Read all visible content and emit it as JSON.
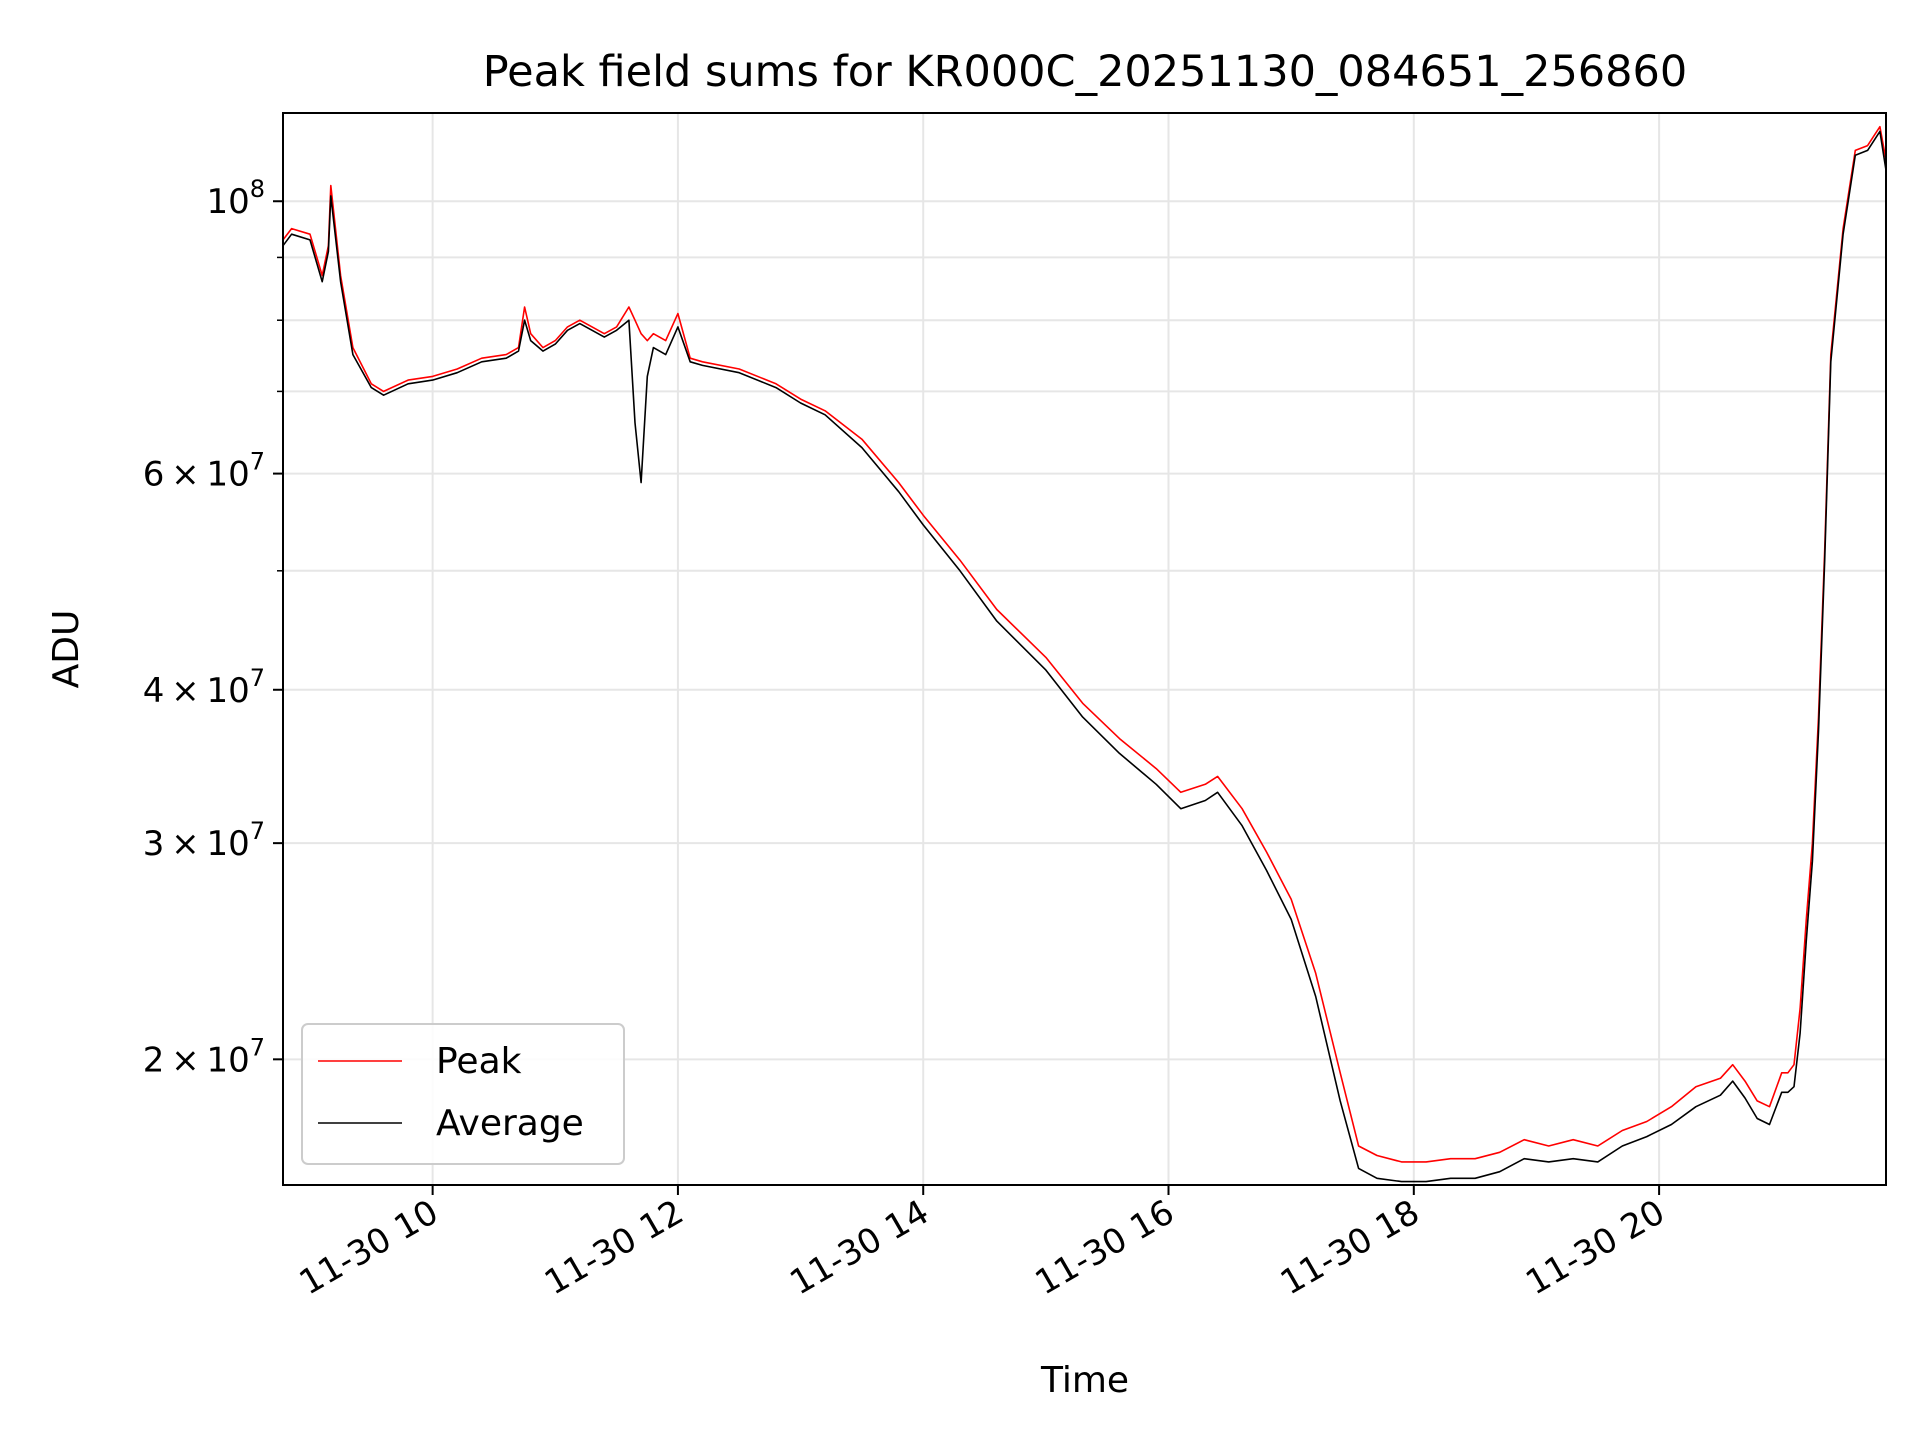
{
  "chart_data": {
    "type": "line",
    "title": "Peak field sums for KR000C_20251130_084651_256860",
    "xlabel": "Time",
    "ylabel": "ADU",
    "x_range_hours": [
      8.78,
      21.85
    ],
    "ylim": [
      15800000,
      118000000
    ],
    "yscale": "log",
    "grid": true,
    "legend_placement": "lower-left",
    "x_ticks": [
      {
        "hour": 10,
        "label": "11-30 10"
      },
      {
        "hour": 12,
        "label": "11-30 12"
      },
      {
        "hour": 14,
        "label": "11-30 14"
      },
      {
        "hour": 16,
        "label": "11-30 16"
      },
      {
        "hour": 18,
        "label": "11-30 18"
      },
      {
        "hour": 20,
        "label": "11-30 20"
      }
    ],
    "y_major_ticks": [
      {
        "value": 20000000,
        "mant": "2",
        "exp": "7"
      },
      {
        "value": 30000000,
        "mant": "3",
        "exp": "7"
      },
      {
        "value": 40000000,
        "mant": "4",
        "exp": "7"
      },
      {
        "value": 60000000,
        "mant": "6",
        "exp": "7"
      },
      {
        "value": 100000000,
        "mant": "",
        "exp": "8"
      }
    ],
    "y_minor_ticks": [
      50000000,
      70000000,
      80000000,
      90000000
    ],
    "series": [
      {
        "name": "Peak",
        "color": "#ff0000",
        "x": [
          8.78,
          8.85,
          9.0,
          9.1,
          9.15,
          9.17,
          9.25,
          9.35,
          9.5,
          9.6,
          9.8,
          10.0,
          10.2,
          10.4,
          10.6,
          10.7,
          10.75,
          10.8,
          10.9,
          11.0,
          11.1,
          11.2,
          11.3,
          11.4,
          11.5,
          11.6,
          11.65,
          11.7,
          11.75,
          11.8,
          11.9,
          12.0,
          12.1,
          12.2,
          12.5,
          12.8,
          13.0,
          13.2,
          13.5,
          13.8,
          14.0,
          14.3,
          14.6,
          15.0,
          15.3,
          15.6,
          15.9,
          16.1,
          16.3,
          16.4,
          16.6,
          16.8,
          17.0,
          17.2,
          17.4,
          17.55,
          17.7,
          17.9,
          18.1,
          18.3,
          18.5,
          18.7,
          18.9,
          19.1,
          19.3,
          19.5,
          19.7,
          19.9,
          20.1,
          20.3,
          20.5,
          20.6,
          20.7,
          20.8,
          20.9,
          21.0,
          21.05,
          21.1,
          21.15,
          21.2,
          21.25,
          21.3,
          21.35,
          21.4,
          21.5,
          21.6,
          21.7,
          21.8,
          21.85
        ],
        "y": [
          93000000,
          95000000,
          94000000,
          87000000,
          92000000,
          103000000,
          87000000,
          76000000,
          71000000,
          70000000,
          71500000,
          72000000,
          73000000,
          74500000,
          75000000,
          76000000,
          82000000,
          78000000,
          76000000,
          77000000,
          79000000,
          80000000,
          79000000,
          78000000,
          79000000,
          82000000,
          80000000,
          78000000,
          77000000,
          78000000,
          77000000,
          81000000,
          74500000,
          74000000,
          73000000,
          71000000,
          69000000,
          67500000,
          64000000,
          59000000,
          55500000,
          51000000,
          46500000,
          42500000,
          39000000,
          36500000,
          34500000,
          33000000,
          33500000,
          34000000,
          32000000,
          29500000,
          27000000,
          23500000,
          19500000,
          17000000,
          16700000,
          16500000,
          16500000,
          16600000,
          16600000,
          16800000,
          17200000,
          17000000,
          17200000,
          17000000,
          17500000,
          17800000,
          18300000,
          19000000,
          19300000,
          19800000,
          19200000,
          18500000,
          18300000,
          19500000,
          19500000,
          19800000,
          22000000,
          26000000,
          30000000,
          38000000,
          52000000,
          75000000,
          95000000,
          110000000,
          111000000,
          115000000,
          108000000
        ]
      },
      {
        "name": "Average",
        "color": "#000000",
        "x": [
          8.78,
          8.85,
          9.0,
          9.1,
          9.15,
          9.17,
          9.25,
          9.35,
          9.5,
          9.6,
          9.8,
          10.0,
          10.2,
          10.4,
          10.6,
          10.7,
          10.75,
          10.8,
          10.9,
          11.0,
          11.1,
          11.2,
          11.3,
          11.4,
          11.5,
          11.6,
          11.65,
          11.7,
          11.75,
          11.8,
          11.9,
          12.0,
          12.1,
          12.2,
          12.5,
          12.8,
          13.0,
          13.2,
          13.5,
          13.8,
          14.0,
          14.3,
          14.6,
          15.0,
          15.3,
          15.6,
          15.9,
          16.1,
          16.3,
          16.4,
          16.6,
          16.8,
          17.0,
          17.2,
          17.4,
          17.55,
          17.7,
          17.9,
          18.1,
          18.3,
          18.5,
          18.7,
          18.9,
          19.1,
          19.3,
          19.5,
          19.7,
          19.9,
          20.1,
          20.3,
          20.5,
          20.6,
          20.7,
          20.8,
          20.9,
          21.0,
          21.05,
          21.1,
          21.15,
          21.2,
          21.25,
          21.3,
          21.35,
          21.4,
          21.5,
          21.6,
          21.7,
          21.8,
          21.85
        ],
        "y": [
          92000000,
          94000000,
          93000000,
          86000000,
          91000000,
          101000000,
          86000000,
          75000000,
          70500000,
          69500000,
          71000000,
          71500000,
          72500000,
          74000000,
          74500000,
          75500000,
          80000000,
          77000000,
          75500000,
          76500000,
          78500000,
          79500000,
          78500000,
          77500000,
          78500000,
          80000000,
          66000000,
          59000000,
          72000000,
          76000000,
          75000000,
          79000000,
          74000000,
          73500000,
          72500000,
          70500000,
          68500000,
          67000000,
          63000000,
          58000000,
          54500000,
          50000000,
          45500000,
          41500000,
          38000000,
          35500000,
          33500000,
          32000000,
          32500000,
          33000000,
          31000000,
          28500000,
          26000000,
          22500000,
          18500000,
          16300000,
          16000000,
          15900000,
          15900000,
          16000000,
          16000000,
          16200000,
          16600000,
          16500000,
          16600000,
          16500000,
          17000000,
          17300000,
          17700000,
          18300000,
          18700000,
          19200000,
          18600000,
          17900000,
          17700000,
          18800000,
          18800000,
          19000000,
          21000000,
          25000000,
          29000000,
          37000000,
          51000000,
          74000000,
          94000000,
          109000000,
          110000000,
          114000000,
          106000000
        ]
      }
    ]
  }
}
